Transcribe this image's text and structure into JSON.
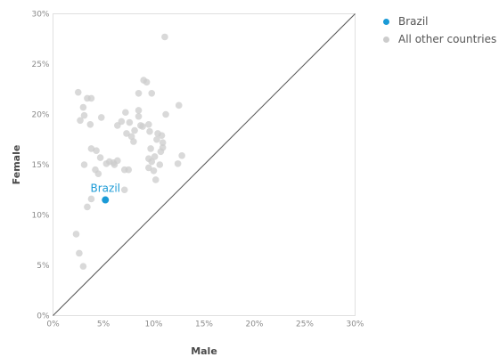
{
  "chart_data": {
    "type": "scatter",
    "xlabel": "Male",
    "ylabel": "Female",
    "xlim": [
      0,
      30
    ],
    "ylim": [
      0,
      30
    ],
    "xticks": [
      "0%",
      "5%",
      "10%",
      "15%",
      "20%",
      "25%",
      "30%"
    ],
    "yticks": [
      "0%",
      "5%",
      "10%",
      "15%",
      "20%",
      "25%",
      "30%"
    ],
    "grid": false,
    "reference_line": "y = x",
    "legend_position": "top-right",
    "colors": {
      "highlight": "#1a9ad6",
      "other": "#cccccc",
      "reference_line": "#555555"
    },
    "highlight": {
      "name": "Brazil",
      "label": "Brazil",
      "x": 5.2,
      "y": 11.5
    },
    "series": [
      {
        "name": "Brazil",
        "color": "#1a9ad6",
        "points": [
          [
            5.2,
            11.5
          ]
        ]
      },
      {
        "name": "All other countries",
        "color": "#cccccc",
        "points": [
          [
            2.5,
            22.2
          ],
          [
            3.4,
            21.6
          ],
          [
            3.8,
            21.6
          ],
          [
            3.0,
            20.7
          ],
          [
            2.7,
            19.4
          ],
          [
            3.1,
            19.9
          ],
          [
            3.7,
            19.0
          ],
          [
            4.8,
            19.7
          ],
          [
            3.8,
            16.6
          ],
          [
            4.3,
            16.4
          ],
          [
            4.7,
            15.7
          ],
          [
            3.1,
            15.0
          ],
          [
            4.2,
            14.5
          ],
          [
            4.5,
            14.1
          ],
          [
            5.3,
            15.1
          ],
          [
            5.6,
            15.3
          ],
          [
            6.0,
            15.2
          ],
          [
            6.1,
            15.0
          ],
          [
            6.4,
            15.4
          ],
          [
            7.1,
            14.5
          ],
          [
            7.5,
            14.5
          ],
          [
            7.1,
            12.5
          ],
          [
            6.4,
            18.9
          ],
          [
            6.8,
            19.3
          ],
          [
            7.2,
            20.2
          ],
          [
            7.3,
            18.1
          ],
          [
            7.6,
            19.2
          ],
          [
            7.8,
            17.8
          ],
          [
            8.1,
            18.4
          ],
          [
            8.0,
            17.3
          ],
          [
            8.5,
            20.4
          ],
          [
            8.5,
            19.8
          ],
          [
            8.5,
            22.1
          ],
          [
            8.7,
            18.9
          ],
          [
            8.9,
            18.8
          ],
          [
            9.0,
            23.4
          ],
          [
            9.3,
            23.2
          ],
          [
            9.5,
            19.0
          ],
          [
            9.6,
            18.3
          ],
          [
            9.8,
            22.1
          ],
          [
            9.7,
            16.6
          ],
          [
            9.5,
            15.6
          ],
          [
            9.5,
            14.7
          ],
          [
            10.0,
            14.4
          ],
          [
            10.2,
            13.5
          ],
          [
            9.8,
            15.3
          ],
          [
            10.1,
            15.8
          ],
          [
            10.3,
            17.5
          ],
          [
            10.4,
            18.1
          ],
          [
            10.8,
            17.9
          ],
          [
            10.9,
            16.7
          ],
          [
            10.9,
            17.2
          ],
          [
            10.6,
            15.0
          ],
          [
            10.7,
            16.3
          ],
          [
            11.2,
            20.0
          ],
          [
            11.1,
            27.7
          ],
          [
            12.5,
            20.9
          ],
          [
            12.4,
            15.1
          ],
          [
            12.8,
            15.9
          ],
          [
            2.3,
            8.1
          ],
          [
            2.6,
            6.2
          ],
          [
            3.0,
            4.9
          ],
          [
            3.4,
            10.8
          ],
          [
            3.8,
            11.6
          ]
        ]
      }
    ]
  }
}
